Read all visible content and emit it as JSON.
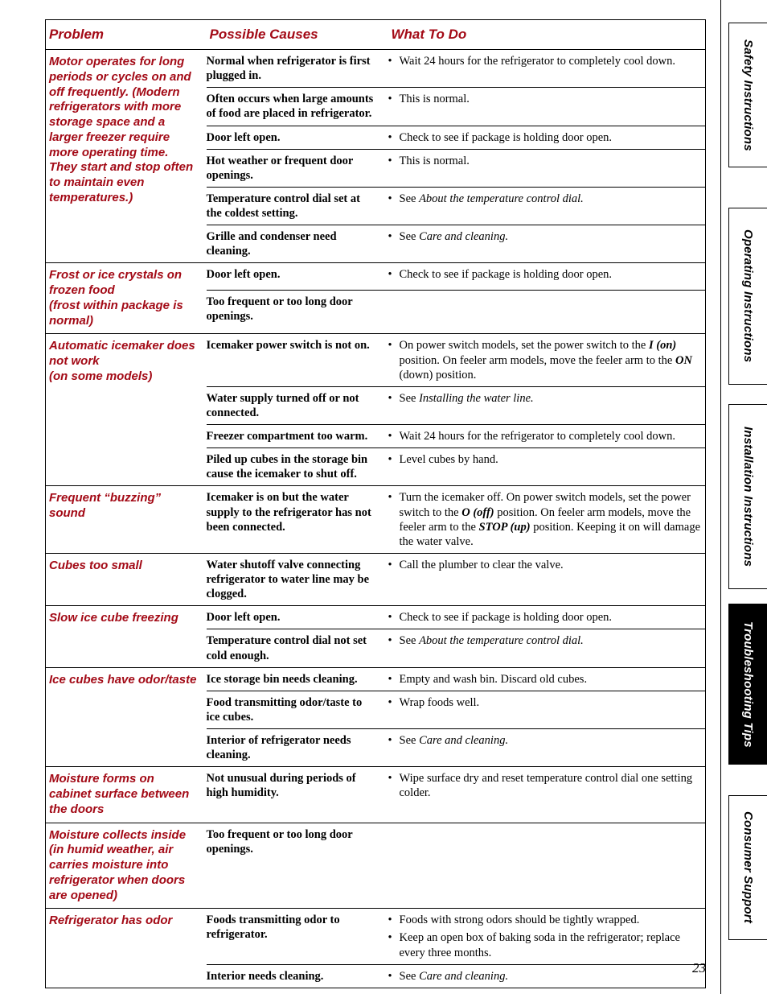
{
  "colors": {
    "accent": "#a30a16",
    "text": "#000000",
    "background": "#ffffff",
    "border": "#000000",
    "active_tab_bg": "#000000",
    "active_tab_text": "#ffffff"
  },
  "typography": {
    "body_font": "Baskerville",
    "heading_font": "ITC Franklin Gothic",
    "body_size_pt": 10.5,
    "heading_size_pt": 12
  },
  "sidebar": {
    "tabs": [
      {
        "label": "Safety Instructions",
        "active": false
      },
      {
        "label": "Operating Instructions",
        "active": false
      },
      {
        "label": "Installation Instructions",
        "active": false
      },
      {
        "label": "Troubleshooting Tips",
        "active": true
      },
      {
        "label": "Consumer Support",
        "active": false
      }
    ]
  },
  "page_number": "23",
  "table": {
    "headers": {
      "problem": "Problem",
      "cause": "Possible Causes",
      "action": "What To Do"
    },
    "rows": [
      {
        "problem": "Motor operates for long periods or cycles on and off frequently. (Modern refrigerators with more storage space and a larger freezer require more operating time. They start and stop often to maintain even temperatures.)",
        "causes": [
          {
            "cause": "Normal when refrigerator is first plugged in.",
            "actions": [
              "Wait 24 hours for the refrigerator to completely cool down."
            ]
          },
          {
            "cause": "Often occurs when large amounts of food are placed in refrigerator.",
            "actions": [
              "This is normal."
            ]
          },
          {
            "cause": "Door left open.",
            "actions": [
              "Check to see if package is holding door open."
            ]
          },
          {
            "cause": "Hot weather or frequent door openings.",
            "actions": [
              "This is normal."
            ]
          },
          {
            "cause": "Temperature control dial set at the coldest setting.",
            "actions": [
              "See <span class=\"ital\">About the temperature control dial.</span>"
            ]
          },
          {
            "cause": "Grille and condenser need cleaning.",
            "actions": [
              "See <span class=\"ital\">Care and cleaning.</span>"
            ]
          }
        ]
      },
      {
        "problem": "Frost or ice crystals on frozen food<br>(frost within package is normal)",
        "causes": [
          {
            "cause": "Door left open.",
            "actions": [
              "Check to see if package is holding door open."
            ]
          },
          {
            "cause": "Too frequent or too long door openings.",
            "actions": []
          }
        ]
      },
      {
        "problem": "Automatic icemaker does not work<br>(on some models)",
        "causes": [
          {
            "cause": "Icemaker power switch is not on.",
            "actions": [
              "On power switch models, set the power switch to the <span class=\"bi\">I (on)</span> position. On feeler arm models, move the feeler arm to the <span class=\"bi\">ON</span> (down) position."
            ]
          },
          {
            "cause": "Water supply turned off or not connected.",
            "actions": [
              "See <span class=\"ital\">Installing the water line.</span>"
            ]
          },
          {
            "cause": "Freezer compartment too warm.",
            "actions": [
              "Wait 24 hours for the refrigerator to completely cool down."
            ]
          },
          {
            "cause": "Piled up cubes in the storage bin cause the icemaker to shut off.",
            "actions": [
              "Level cubes by hand."
            ]
          }
        ]
      },
      {
        "problem": "Frequent “buzzing” sound",
        "causes": [
          {
            "cause": "Icemaker is on but the water supply to the refrigerator has not been connected.",
            "actions": [
              "Turn the icemaker off. On power switch models, set the power switch to the <span class=\"bi\">O (off)</span> position. On feeler arm models, move the feeler arm to the <span class=\"bi\">STOP (up)</span> position. Keeping it on will damage the water valve."
            ]
          }
        ]
      },
      {
        "problem": "Cubes too small",
        "causes": [
          {
            "cause": "Water shutoff valve connecting refrigerator to water line may be clogged.",
            "actions": [
              "Call the plumber to clear the valve."
            ]
          }
        ]
      },
      {
        "problem": "Slow ice cube freezing",
        "causes": [
          {
            "cause": "Door left open.",
            "actions": [
              "Check to see if package is holding door open."
            ]
          },
          {
            "cause": "Temperature control dial not set cold enough.",
            "actions": [
              "See <span class=\"ital\">About the temperature control dial.</span>"
            ]
          }
        ]
      },
      {
        "problem": "Ice cubes have odor/taste",
        "causes": [
          {
            "cause": "Ice storage bin needs cleaning.",
            "actions": [
              "Empty and wash bin. Discard old cubes."
            ]
          },
          {
            "cause": "Food transmitting odor/taste to ice cubes.",
            "actions": [
              "Wrap foods well."
            ]
          },
          {
            "cause": "Interior of refrigerator needs cleaning.",
            "actions": [
              "See <span class=\"ital\">Care and cleaning.</span>"
            ]
          }
        ]
      },
      {
        "problem": "Moisture forms on cabinet surface between the doors",
        "causes": [
          {
            "cause": "Not unusual during periods of high humidity.",
            "actions": [
              "Wipe surface dry and reset temperature control dial one setting colder."
            ]
          }
        ]
      },
      {
        "problem": "Moisture collects inside (in humid weather, air carries moisture into refrigerator when doors are opened)",
        "causes": [
          {
            "cause": "Too frequent or too long door openings.",
            "actions": []
          }
        ]
      },
      {
        "problem": "Refrigerator has odor",
        "causes": [
          {
            "cause": "Foods transmitting odor to refrigerator.",
            "actions": [
              "Foods with strong odors should be tightly wrapped.",
              "Keep an open box of baking soda in the refrigerator; replace every three months."
            ]
          },
          {
            "cause": "Interior needs cleaning.",
            "actions": [
              "See <span class=\"ital\">Care and cleaning.</span>"
            ]
          }
        ]
      }
    ]
  }
}
